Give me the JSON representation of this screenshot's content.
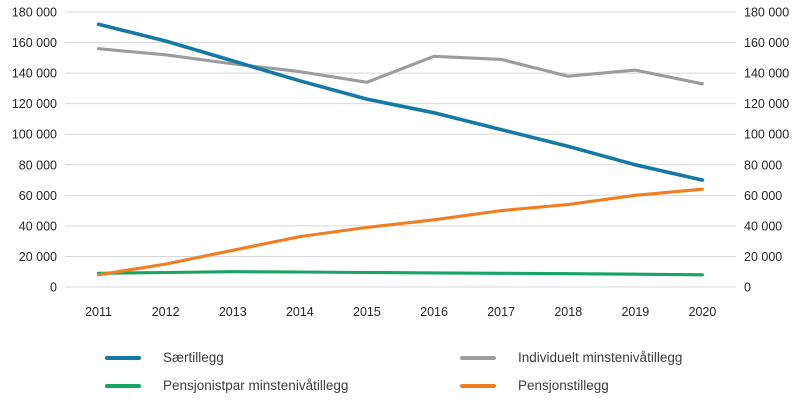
{
  "chart_data": {
    "type": "line",
    "title": "",
    "categories": [
      "2011",
      "2012",
      "2013",
      "2014",
      "2015",
      "2016",
      "2017",
      "2018",
      "2019",
      "2020"
    ],
    "series": [
      {
        "name": "Særtillegg",
        "color": "#1579a7",
        "values": [
          172000,
          161000,
          148000,
          135000,
          123000,
          114000,
          103000,
          92000,
          80000,
          70000
        ]
      },
      {
        "name": "Individuelt minstenivåtillegg",
        "color": "#9c9c9c",
        "values": [
          156000,
          152000,
          146000,
          141000,
          134000,
          151000,
          149000,
          138000,
          142000,
          133000
        ]
      },
      {
        "name": "Pensjonistpar minstenivåtillegg",
        "color": "#16a563",
        "values": [
          9000,
          9500,
          10000,
          9800,
          9500,
          9200,
          9000,
          8700,
          8400,
          8000
        ]
      },
      {
        "name": "Pensjonstillegg",
        "color": "#f07d1f",
        "values": [
          8000,
          15000,
          24000,
          33000,
          39000,
          44000,
          50000,
          54000,
          60000,
          64000
        ]
      }
    ],
    "y_axis": {
      "min": 0,
      "max": 180000,
      "tick_step": 20000,
      "tick_labels": [
        "0",
        "20 000",
        "40 000",
        "60 000",
        "80 000",
        "100 000",
        "120 000",
        "140 000",
        "160 000",
        "180 000"
      ],
      "mirrored_right_axis": true
    },
    "xlabel": "",
    "ylabel": "",
    "grid": "horizontal",
    "legend_position": "bottom"
  },
  "colors": {
    "background": "#ffffff",
    "gridline": "#d8d8d8",
    "tick_text": "#262626",
    "legend_text": "#3d3d3d"
  }
}
